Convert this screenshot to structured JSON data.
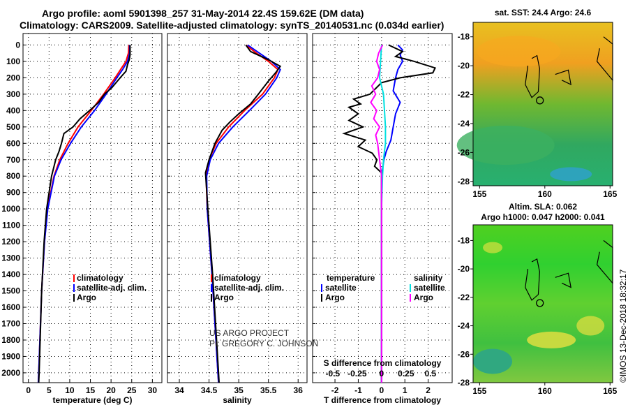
{
  "title": {
    "line1": "Argo profile: aoml 5901398_257 31-May-2014 22.4S 159.62E (DM data)",
    "line2": "Climatology: CARS2009. Satellite-adjusted climatology: synTS_20140531.nc (0.034d earlier)"
  },
  "credit": {
    "project": "US ARGO PROJECT",
    "pi": "PI: GREGORY C. JOHNSON",
    "imos": "©IMOS 13-Dec-2018 18:32:17"
  },
  "colors": {
    "climatology": "#ff0000",
    "satellite": "#0000ff",
    "argo": "#000000",
    "sal_sat": "#00e0e0",
    "sal_argo": "#ff00ff"
  },
  "chart_data": [
    {
      "type": "line",
      "name": "temperature",
      "xlabel": "temperature (deg C)",
      "ylabel": "",
      "xlim": [
        -1.3,
        32.3
      ],
      "ylim": [
        2060,
        -70
      ],
      "xticks": [
        0,
        5,
        10,
        15,
        20,
        25,
        30
      ],
      "yticks": [
        0,
        100,
        200,
        300,
        400,
        500,
        600,
        700,
        800,
        900,
        1000,
        1100,
        1200,
        1300,
        1400,
        1500,
        1600,
        1700,
        1800,
        1900,
        2000
      ],
      "legend": [
        "climatology",
        "satellite-adj. clim.",
        "Argo"
      ],
      "series": [
        {
          "name": "climatology",
          "color": "#ff0000",
          "depth": [
            0,
            50,
            100,
            150,
            200,
            300,
            400,
            500,
            600,
            700,
            800,
            1000,
            1200,
            1500,
            2000,
            2060
          ],
          "values": [
            24.3,
            24.2,
            23.6,
            22.3,
            21.0,
            18.2,
            15.2,
            12.0,
            9.6,
            7.6,
            6.2,
            4.6,
            3.9,
            3.2,
            2.5,
            2.4
          ]
        },
        {
          "name": "satellite-adj. clim.",
          "color": "#0000ff",
          "depth": [
            0,
            50,
            100,
            150,
            200,
            300,
            400,
            500,
            600,
            700,
            800,
            1000,
            1200,
            1500,
            2000,
            2060
          ],
          "values": [
            24.5,
            24.5,
            24.0,
            22.8,
            21.4,
            18.8,
            16.0,
            12.8,
            10.2,
            7.9,
            6.3,
            4.7,
            3.9,
            3.2,
            2.5,
            2.4
          ]
        },
        {
          "name": "Argo",
          "color": "#000000",
          "depth": [
            0,
            60,
            90,
            120,
            160,
            200,
            260,
            300,
            350,
            400,
            450,
            500,
            540,
            600,
            650,
            700,
            800,
            1000,
            1200,
            1500,
            2000,
            2060
          ],
          "values": [
            24.6,
            24.6,
            24.4,
            24.0,
            23.6,
            22.2,
            20.2,
            18.4,
            17.0,
            14.8,
            12.5,
            10.8,
            8.6,
            8.0,
            7.4,
            6.6,
            5.6,
            4.4,
            3.8,
            3.2,
            2.6,
            2.5
          ]
        }
      ]
    },
    {
      "type": "line",
      "name": "salinity",
      "xlabel": "salinity",
      "xlim": [
        33.8,
        36.15
      ],
      "ylim": [
        2060,
        -70
      ],
      "xticks": [
        34,
        34.5,
        35,
        35.5,
        36
      ],
      "legend": [
        "climatology",
        "satellite-adj. clim.",
        "Argo"
      ],
      "series": [
        {
          "name": "climatology",
          "color": "#ff0000",
          "depth": [
            0,
            50,
            100,
            150,
            200,
            300,
            400,
            500,
            600,
            700,
            800,
            1000,
            1400,
            2000,
            2060
          ],
          "values": [
            35.12,
            35.3,
            35.5,
            35.66,
            35.6,
            35.4,
            35.1,
            34.83,
            34.62,
            34.5,
            34.45,
            34.47,
            34.55,
            34.65,
            34.66
          ]
        },
        {
          "name": "satellite-adj. clim.",
          "color": "#0000ff",
          "depth": [
            0,
            50,
            100,
            150,
            200,
            300,
            400,
            500,
            600,
            700,
            800,
            1000,
            1400,
            2000,
            2060
          ],
          "values": [
            35.15,
            35.35,
            35.55,
            35.7,
            35.64,
            35.45,
            35.18,
            34.9,
            34.66,
            34.52,
            34.46,
            34.47,
            34.55,
            34.65,
            34.66
          ]
        },
        {
          "name": "Argo",
          "color": "#000000",
          "depth": [
            0,
            40,
            90,
            130,
            170,
            220,
            300,
            360,
            420,
            470,
            520,
            600,
            700,
            780,
            1000,
            1400,
            2000,
            2060
          ],
          "values": [
            35.12,
            35.2,
            35.5,
            35.7,
            35.62,
            35.5,
            35.33,
            35.2,
            35.0,
            34.85,
            34.72,
            34.6,
            34.5,
            34.44,
            34.48,
            34.56,
            34.66,
            34.67
          ]
        }
      ]
    },
    {
      "type": "line",
      "name": "difference",
      "xlabel": "T difference from climatology",
      "x2label": "S difference from climatology",
      "xlim": [
        -2.96,
        3.03
      ],
      "xticks": [
        -2,
        -1,
        0,
        1,
        2
      ],
      "s_xticks": [
        -0.5,
        -0.25,
        0,
        0.25,
        0.5
      ],
      "ylim": [
        2060,
        -70
      ],
      "legend": {
        "temperature": "temperature",
        "salinity": "salinity",
        "satellite": "satellite",
        "argo": "Argo"
      },
      "series": [
        {
          "name": "T satellite",
          "color": "#0000ff",
          "scale": "T",
          "depth": [
            0,
            30,
            60,
            100,
            150,
            200,
            280,
            350,
            420,
            500,
            580,
            650,
            700,
            800,
            1000,
            2000,
            2060
          ],
          "values": [
            0.7,
            0.9,
            0.8,
            0.9,
            0.7,
            0.6,
            0.5,
            0.8,
            0.6,
            0.5,
            0.4,
            0.2,
            0.1,
            0.0,
            0.0,
            0.0,
            0.0
          ]
        },
        {
          "name": "T Argo",
          "color": "#000000",
          "scale": "T",
          "depth": [
            0,
            40,
            70,
            100,
            140,
            170,
            200,
            230,
            300,
            330,
            360,
            380,
            420,
            460,
            500,
            540,
            580,
            620,
            660,
            700,
            740,
            780,
            800,
            1000,
            2000,
            2060
          ],
          "values": [
            0.3,
            0.9,
            0.6,
            1.4,
            2.3,
            2.2,
            0.8,
            0.0,
            -0.5,
            -1.2,
            -0.9,
            -1.4,
            -1.0,
            -1.4,
            -0.8,
            -1.6,
            -0.7,
            -1.0,
            -0.4,
            -0.2,
            -0.3,
            0.0,
            0.0,
            0.0,
            0.0,
            0.0
          ]
        },
        {
          "name": "S satellite",
          "color": "#00e0e0",
          "scale": "S",
          "depth": [
            0,
            100,
            200,
            300,
            400,
            500,
            600,
            700,
            800,
            1000,
            2000,
            2060
          ],
          "values": [
            0.0,
            -0.01,
            -0.02,
            0.02,
            0.03,
            0.04,
            0.04,
            0.02,
            0.01,
            0.0,
            0.0,
            0.0
          ]
        },
        {
          "name": "S Argo",
          "color": "#ff00ff",
          "scale": "S",
          "depth": [
            0,
            50,
            100,
            150,
            200,
            250,
            300,
            350,
            400,
            450,
            500,
            550,
            600,
            650,
            700,
            750,
            800,
            1000,
            2000,
            2060
          ],
          "values": [
            0.01,
            -0.03,
            -0.05,
            -0.02,
            -0.04,
            -0.1,
            -0.06,
            -0.11,
            -0.05,
            -0.08,
            -0.02,
            -0.06,
            -0.04,
            -0.03,
            -0.02,
            -0.01,
            0.0,
            0.0,
            0.0,
            0.0
          ]
        }
      ]
    },
    {
      "type": "heatmap",
      "name": "sst-map",
      "title": "sat. SST: 24.4 Argo: 24.6",
      "xlim": [
        154.5,
        165.2
      ],
      "ylim": [
        -28.3,
        -17
      ],
      "xticks": [
        155,
        160,
        165
      ],
      "yticks": [
        -18,
        -20,
        -22,
        -24,
        -26,
        -28
      ],
      "argo_position": [
        159.62,
        -22.4
      ]
    },
    {
      "type": "heatmap",
      "name": "sla-map",
      "title1": "Altim. SLA: 0.062",
      "title2": "Argo h1000: 0.047 h2000: 0.041",
      "xlim": [
        154.5,
        165.2
      ],
      "ylim": [
        -28,
        -16.9
      ],
      "xticks": [
        155,
        160,
        165
      ],
      "yticks": [
        -18,
        -20,
        -22,
        -24,
        -26,
        -28
      ],
      "argo_position": [
        159.62,
        -22.4
      ]
    }
  ]
}
